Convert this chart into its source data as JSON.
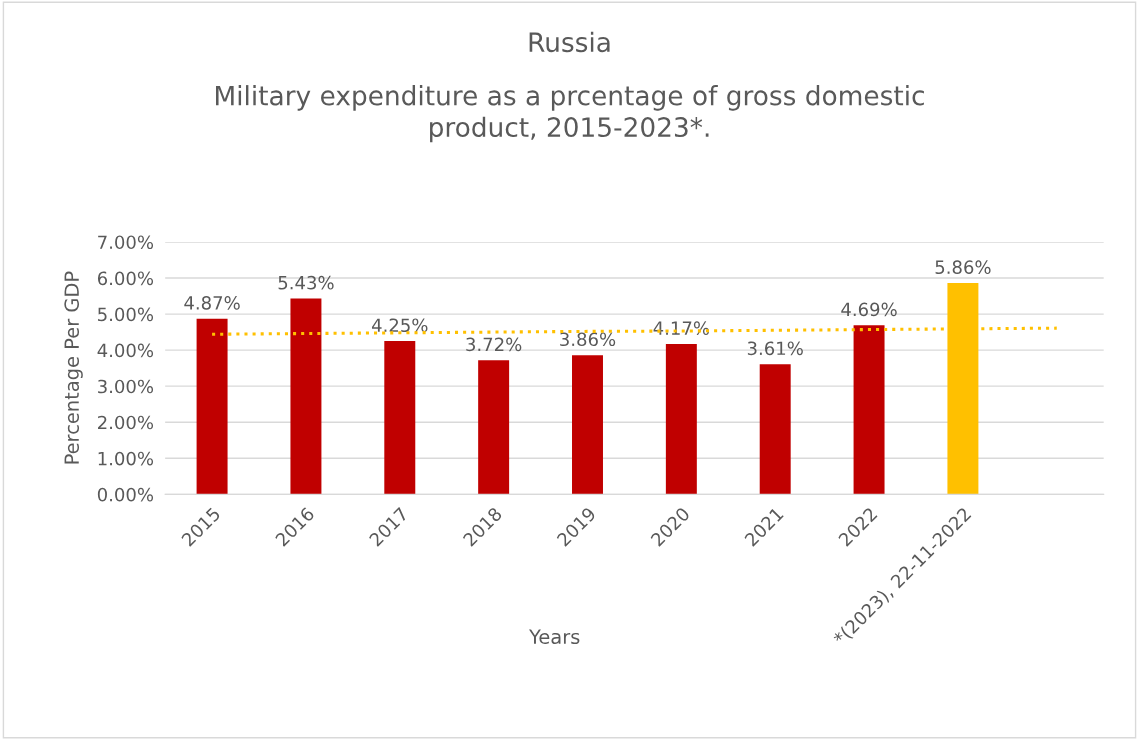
{
  "chart_data": {
    "type": "bar",
    "title": "Russia",
    "subtitle": "Military expenditure as a prcentage of gross domestic\nproduct, 2015-2023*.",
    "xlabel": "Years",
    "ylabel": "Percentage Per GDP",
    "categories": [
      "2015",
      "2016",
      "2017",
      "2018",
      "2019",
      "2020",
      "2021",
      "2022",
      "*(2023), 22-11-2022",
      null
    ],
    "series": [
      {
        "values": [
          4.87,
          5.43,
          4.25,
          3.72,
          3.86,
          4.17,
          3.61,
          4.69,
          5.86,
          null
        ],
        "colors": [
          "#c00000",
          "#c00000",
          "#c00000",
          "#c00000",
          "#c00000",
          "#c00000",
          "#c00000",
          "#c00000",
          "#ffc000",
          "#c00000"
        ],
        "value_labels": [
          "4.87%",
          "5.43%",
          "4.25%",
          "3.72%",
          "3.86%",
          "4.17%",
          "3.61%",
          "4.69%",
          "5.86%",
          null
        ]
      },
      {
        "type": "line",
        "color": "#ffc000",
        "line_style": "dotted",
        "values": [
          4.44,
          4.46,
          4.48,
          4.5,
          4.52,
          4.53,
          4.55,
          4.57,
          4.59,
          4.61
        ]
      }
    ],
    "ylim": [
      0,
      7
    ],
    "yticks": [
      {
        "value": 0,
        "label": "0.00%"
      },
      {
        "value": 1,
        "label": "1.00%"
      },
      {
        "value": 2,
        "label": "2.00%"
      },
      {
        "value": 3,
        "label": "3.00%"
      },
      {
        "value": 4,
        "label": "4.00%"
      },
      {
        "value": 5,
        "label": "5.00%"
      },
      {
        "value": 6,
        "label": "6.00%"
      },
      {
        "value": 7,
        "label": "7.00%"
      }
    ],
    "grid": "y",
    "legend": false
  }
}
